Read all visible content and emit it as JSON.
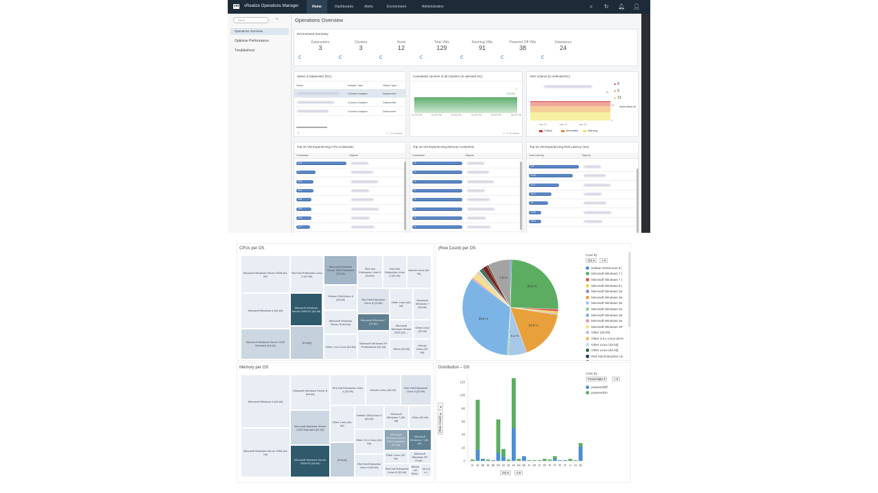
{
  "header": {
    "logo": "vm",
    "app_title": "vRealize Operations Manager",
    "nav": [
      "Home",
      "Dashboards",
      "Alerts",
      "Environment",
      "Administration"
    ],
    "active": "Home",
    "icons": [
      "search-icon",
      "refresh-icon",
      "bell-icon",
      "user-icon"
    ]
  },
  "sidebar": {
    "back_label": "BACK",
    "collapse": "«",
    "items": [
      "Operations Overview",
      "Optimize Performance",
      "Troubleshoot"
    ],
    "selected": "Operations Overview"
  },
  "page_title": "Operations Overview",
  "env_summary": {
    "title": "Environment Summary",
    "stats": [
      {
        "label": "Datacenters",
        "value": "3"
      },
      {
        "label": "Clusters",
        "value": "3"
      },
      {
        "label": "Hosts",
        "value": "12"
      },
      {
        "label": "Total VMs",
        "value": "129"
      },
      {
        "label": "Running VMs",
        "value": "91"
      },
      {
        "label": "Powered Off VMs",
        "value": "38"
      },
      {
        "label": "Datastores",
        "value": "24"
      }
    ]
  },
  "datacenter": {
    "title": "Select a Datacenter (DC)",
    "columns": [
      "Name",
      "Adapter Type",
      "Object Type"
    ],
    "rows": [
      {
        "adapter": "vCenter Adapter",
        "type": "Datacenter"
      },
      {
        "adapter": "vCenter Adapter",
        "type": "Datacenter"
      },
      {
        "adapter": "vCenter Adapter",
        "type": "Datacenter"
      }
    ],
    "footer": "1 - 3 of 3 items"
  },
  "uptime": {
    "title": "Cumulative Up-time of all Clusters (in selected DC)",
    "value": "100 (%)",
    "times": [
      "01:00 PM",
      "02:00 PM",
      "03:00 PM",
      "04:00 PM",
      "05:00 PM",
      "06:00 PM"
    ],
    "footer": "1 - 1 of 1 items"
  },
  "alerts": {
    "title": "Alert Volume (in selected DC)",
    "counts": [
      {
        "value": "8",
        "color": "#d9302c"
      },
      {
        "value": "9",
        "color": "#e8892b"
      },
      {
        "value": "13",
        "color": "#e8c52b"
      }
    ],
    "y_ticks": [
      "30",
      "20",
      "0"
    ],
    "active": "Active Alerts 30",
    "dates": [
      "Mar 22",
      "Mar 24",
      "Mar 26"
    ],
    "legend": [
      {
        "label": "Critical",
        "color": "#d9302c"
      },
      {
        "label": "Immediate",
        "color": "#e8892b"
      },
      {
        "label": "Warning",
        "color": "#efe35a"
      }
    ]
  },
  "cpu": {
    "title": "Top-15 VM Experiencing CPU Contention",
    "columns": [
      "Contention",
      "Objects"
    ],
    "values": [
      "2.6",
      "1",
      "0.9",
      "0.9",
      "0.8",
      "0.8",
      "0.8",
      "0.7"
    ],
    "max": 2.6
  },
  "memory": {
    "title": "Top-15 VM Experiencing Memory Contention",
    "columns": [
      "Contention",
      "Objects"
    ],
    "values": [
      "0",
      "0",
      "0",
      "0",
      "0",
      "0",
      "0",
      "0"
    ],
    "max": 0
  },
  "disk": {
    "title": "Top-15 VM Experiencing Disk Latency (ms)",
    "columns": [
      "Total Latency",
      "Objects"
    ],
    "values": [
      "13",
      "12.6",
      "11.7",
      "11.2",
      "11",
      "10.5",
      "10.3"
    ],
    "max": 13
  },
  "cpus_per_os": {
    "title": "CPUs per OS",
    "cells": [
      "Microsoft Windows Server 2008 (64-bit)",
      "Red Hat Enterprise Linux 4 (32-bit)",
      "Microsoft Windows Server 2003 Standard (32-bit)",
      "Red Hat Enterprise Linux 5 (64-bit)",
      "Red Hat Enterprise Linux 6 (32-bit)",
      "Ubuntu Linux (64-bit)",
      "Microsoft Windows 8 (64-bit)",
      "Microsoft Windows Server 2008 R2 (64-bit)",
      "Debian GNU/Linux 6 (64-bit)",
      "Microsoft Windows Server 8 (64-bit)",
      "Red Hat Enterprise Linux 5 (32-bit)",
      "Other Linux (64-bit)",
      "Microsoft Windows 7 (64-bit)",
      "Microsoft Windows 7 (32-bit)",
      "Microsoft Windows Server 2003 (32-...",
      "Other Linux (32-bit)",
      "Microsoft Windows Server 2003 Standard (64-bit)",
      "(Empty)",
      "Other 2.6.x Linux (64-bit)",
      "Microsoft Windows XP Professional (32-bit)",
      "Other (32-bit)",
      "Ubuntu Linux (32-bit)"
    ]
  },
  "memory_per_os": {
    "title": "Memory per OS",
    "cells": [
      "Microsoft Windows 8 (64-bit)",
      "Microsoft Windows Server 8 (64-bit)",
      "Red Hat Enterprise Linux 4 (32-bit)",
      "Ubuntu Linux (64-bit)",
      "Red Hat Enterprise Linux 5 (32-bit)",
      "Microsoft Windows Server 2003 Standard (64-bit)",
      "Other Linux (64-bit)",
      "Debian GNU/Linux 6 (64-bit)",
      "Microsoft Windows 7 (64-bit)",
      "Other (32-bit)",
      "Microsoft Windows Server 2008 (64-bit)",
      "Microsoft Windows Server 2008 R2 (64-bit)",
      "Other 2.6.x Linux (64-bit)",
      "Microsoft Windows Server 2003 Standard (32-bit)",
      "Microsoft Windows 7 (32-bit)",
      "(Empty)",
      "Red Hat Enterprise Linux 6 (64-bit)",
      "Other Linux (32-bit)",
      "Microsoft Windows XP Profe...",
      "Red Hat Enterprise Linux 6 (32-bit)",
      "Micros oft Wind...",
      "Ub unt u L"
    ]
  },
  "chart_data": [
    {
      "type": "pie",
      "title": "(Row Count) per OS",
      "color_by_label": "Color by:",
      "color_by": "OS",
      "slices": [
        {
          "name": "Debian GNU/Linux 5 (",
          "value": 0.5,
          "color": "#4a90d9"
        },
        {
          "name": "Microsoft Windows 7 (",
          "value": 25.0,
          "color": "#5cad61",
          "label": "25.0 %"
        },
        {
          "name": "Microsoft Windows 7 (",
          "value": 0.8,
          "color": "#d9534f"
        },
        {
          "name": "Microsoft Windows 8 (",
          "value": 0.8,
          "color": "#f0d25a"
        },
        {
          "name": "Microsoft Windows Se",
          "value": 0.3,
          "color": "#9b8ac4"
        },
        {
          "name": "Microsoft Windows Se",
          "value": 16.9,
          "color": "#e8a03a",
          "label": "16.9 %"
        },
        {
          "name": "Microsoft Windows Se",
          "value": 6.1,
          "color": "#a8c8e8",
          "label": "6.1 %"
        },
        {
          "name": "Microsoft Windows Se",
          "value": 0.5,
          "color": "#8fcf9a"
        },
        {
          "name": "Microsoft Windows Se",
          "value": 33.9,
          "color": "#7cb4e6",
          "label": "33.9 %"
        },
        {
          "name": "Microsoft Windows Se",
          "value": 0.6,
          "color": "#e89aa0"
        },
        {
          "name": "Microsoft Windows XP",
          "value": 2.0,
          "color": "#f5e08a"
        },
        {
          "name": "Other (32-bit)",
          "value": 0.4,
          "color": "#c9b8e3"
        },
        {
          "name": "Other 2.6.x Linux (64-b",
          "value": 0.4,
          "color": "#f0b860"
        },
        {
          "name": "Other Linux (32-bit)",
          "value": 0.4,
          "color": "#bfe0e6"
        },
        {
          "name": "Other Linux (64-bit)",
          "value": 0.7,
          "color": "#2e6b3a"
        },
        {
          "name": "Red Hat Enterprise Lin",
          "value": 0.5,
          "color": "#1f3a5c"
        },
        {
          "name": "Red Hat Enterprise Lin",
          "value": 1.6,
          "color": "#7a2020"
        },
        {
          "value": 0.6,
          "color": "#6b4a2a"
        },
        {
          "value": 7.6,
          "color": "#a3a3a3",
          "label": "7.6 %"
        }
      ]
    },
    {
      "type": "bar",
      "stacked": true,
      "title": "Distribution – OS",
      "xlabel": "OS",
      "ylabel": "(Row Count)",
      "ylim": [
        0,
        130
      ],
      "y_ticks": [
        0,
        20,
        40,
        60,
        80,
        100,
        120
      ],
      "color_by_label": "Color by:",
      "color_by": "Powerstate",
      "legend": "top-right",
      "categories": [
        "D",
        "M",
        "Mi",
        "M",
        "Mi",
        "Mi",
        "M",
        "M",
        "M",
        "Mi",
        "Mi",
        "O",
        "Ot",
        "O",
        "Ot",
        "R",
        "R",
        "R",
        "R",
        "U",
        "Ui",
        "(E"
      ],
      "series": [
        {
          "name": "poweredOff",
          "color": "#4a8fd4",
          "values": [
            0,
            17,
            3,
            0,
            1,
            12,
            6,
            0,
            50,
            0,
            7,
            0,
            0,
            0,
            0,
            0,
            3,
            1,
            1,
            0,
            0,
            22
          ]
        },
        {
          "name": "poweredOn",
          "color": "#5cad61",
          "values": [
            2,
            76,
            0,
            2,
            0,
            51,
            12,
            2,
            76,
            3,
            0,
            1,
            1,
            1,
            3,
            2,
            4,
            0,
            0,
            3,
            1,
            5
          ]
        }
      ]
    }
  ]
}
